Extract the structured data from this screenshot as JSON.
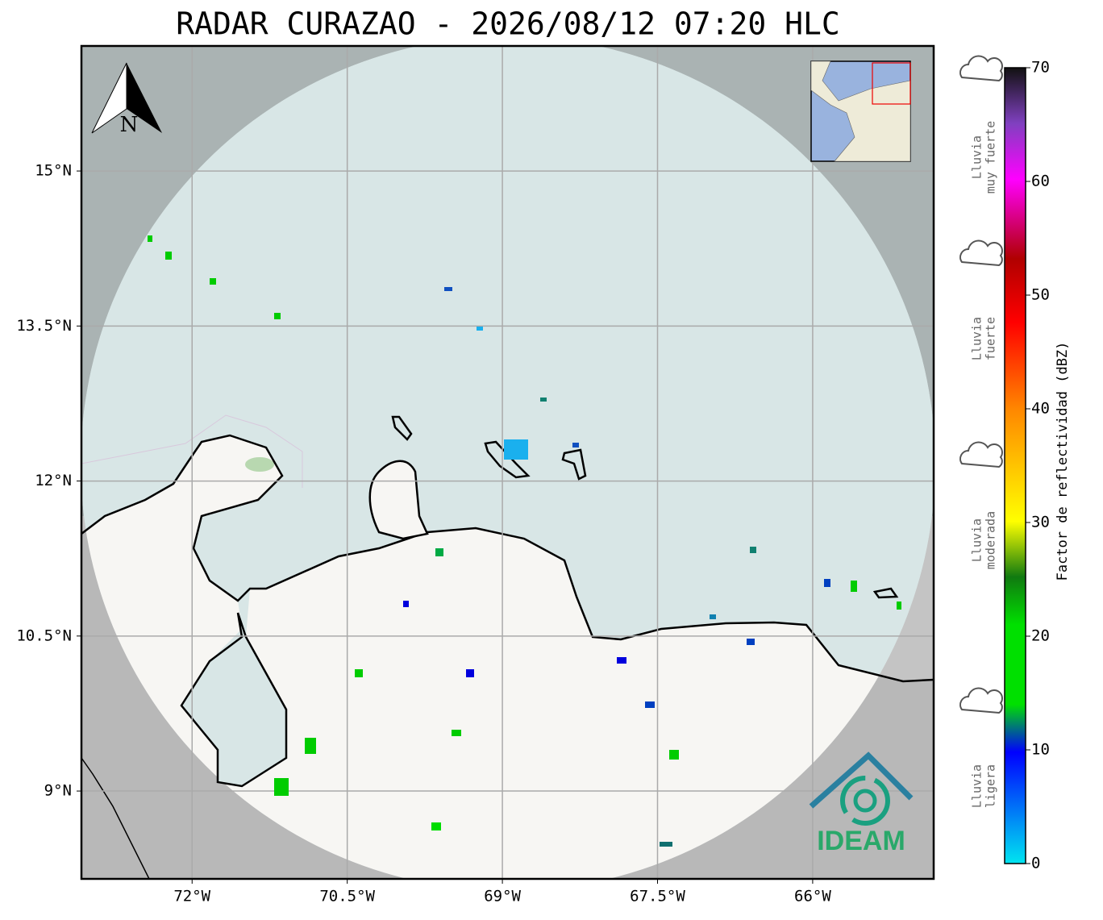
{
  "title": "RADAR CURAZAO - 2026/08/12 07:20 HLC",
  "north": "N",
  "lon_lim": [
    -73.07,
    -64.83
  ],
  "lat_lim": [
    8.15,
    16.21
  ],
  "lon_ticks": [
    {
      "value": -72,
      "label": "72°W"
    },
    {
      "value": -70.5,
      "label": "70.5°W"
    },
    {
      "value": -69,
      "label": "69°W"
    },
    {
      "value": -67.5,
      "label": "67.5°W"
    },
    {
      "value": -66,
      "label": "66°W"
    }
  ],
  "lat_ticks": [
    {
      "value": 15,
      "label": "15°N"
    },
    {
      "value": 13.5,
      "label": "13.5°N"
    },
    {
      "value": 12,
      "label": "12°N"
    },
    {
      "value": 10.5,
      "label": "10.5°N"
    },
    {
      "value": 9,
      "label": "9°N"
    }
  ],
  "colorbar": {
    "label": "Factor de reflectividad (dBZ)",
    "lim": [
      0,
      70
    ],
    "ticks": [
      0,
      10,
      20,
      30,
      40,
      50,
      60,
      70
    ]
  },
  "rain_labels": [
    [
      "Lluvia",
      "muy fuerte"
    ],
    [
      "Lluvia",
      "fuerte"
    ],
    [
      "Lluvia",
      "moderada"
    ],
    [
      "Lluvia",
      "ligera"
    ]
  ],
  "logo": "IDEAM"
}
